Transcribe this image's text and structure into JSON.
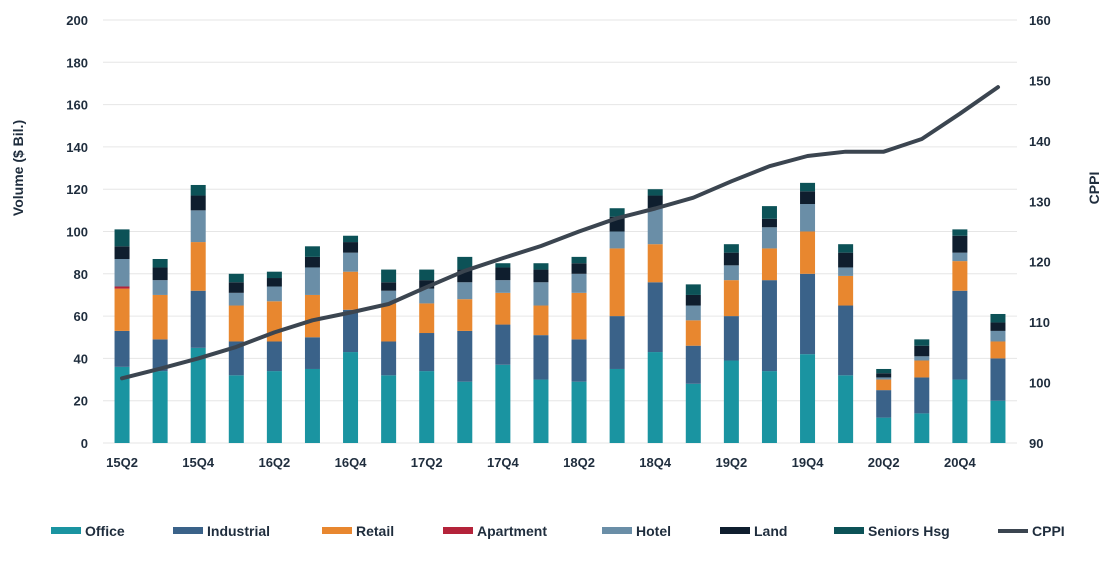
{
  "chart_data": {
    "type": "bar",
    "stacked": true,
    "categories": [
      "15Q2",
      "15Q3",
      "15Q4",
      "16Q1",
      "16Q2",
      "16Q3",
      "16Q4",
      "17Q1",
      "17Q2",
      "17Q3",
      "17Q4",
      "18Q1",
      "18Q2",
      "18Q3",
      "18Q4",
      "19Q1",
      "19Q2",
      "19Q3",
      "19Q4",
      "20Q1",
      "20Q2",
      "20Q3",
      "20Q4",
      "21Q1"
    ],
    "x_tick_labels": [
      "15Q2",
      "",
      "15Q4",
      "",
      "16Q2",
      "",
      "16Q4",
      "",
      "17Q2",
      "",
      "17Q4",
      "",
      "18Q2",
      "",
      "18Q4",
      "",
      "19Q2",
      "",
      "19Q4",
      "",
      "20Q2",
      "",
      "20Q4",
      ""
    ],
    "ylabel": "Volume ($ Bil.)",
    "y2label": "CPPI",
    "ylim": [
      0,
      200
    ],
    "y2lim": [
      90,
      160
    ],
    "yticks": [
      0,
      20,
      40,
      60,
      80,
      100,
      120,
      140,
      160,
      180,
      200
    ],
    "y2ticks": [
      90,
      100,
      110,
      120,
      130,
      140,
      150,
      160
    ],
    "grid": true,
    "legend_position": "bottom",
    "series": [
      {
        "name": "Office",
        "color": "#1a94a1",
        "values": [
          36,
          34,
          45,
          32,
          34,
          35,
          43,
          32,
          34,
          29,
          37,
          30,
          29,
          35,
          43,
          28,
          39,
          34,
          42,
          32,
          12,
          14,
          30,
          20
        ]
      },
      {
        "name": "Industrial",
        "color": "#3a6289",
        "values": [
          17,
          15,
          27,
          16,
          14,
          15,
          20,
          16,
          18,
          24,
          19,
          21,
          20,
          25,
          33,
          18,
          21,
          43,
          38,
          33,
          13,
          17,
          42,
          20
        ]
      },
      {
        "name": "Retail",
        "color": "#e8872f",
        "values": [
          20,
          21,
          23,
          17,
          19,
          20,
          18,
          18,
          14,
          15,
          15,
          14,
          22,
          32,
          18,
          12,
          17,
          15,
          20,
          14,
          5,
          8,
          14,
          8
        ]
      },
      {
        "name": "Apartment",
        "color": "#b4233a",
        "values": [
          1,
          0,
          0,
          0,
          0,
          0,
          0,
          0,
          0,
          0,
          0,
          0,
          0,
          0,
          0,
          0,
          0,
          0,
          0,
          0,
          0,
          0,
          0,
          0
        ]
      },
      {
        "name": "Hotel",
        "color": "#6a8ea7",
        "values": [
          13,
          7,
          15,
          6,
          7,
          13,
          9,
          6,
          7,
          8,
          6,
          11,
          9,
          8,
          17,
          7,
          7,
          10,
          13,
          4,
          1,
          2,
          4,
          5
        ]
      },
      {
        "name": "Land",
        "color": "#0f1e2e",
        "values": [
          6,
          6,
          7,
          5,
          4,
          5,
          5,
          4,
          4,
          6,
          6,
          6,
          5,
          7,
          6,
          5,
          6,
          4,
          6,
          7,
          2,
          5,
          8,
          4
        ]
      },
      {
        "name": "Seniors Hsg",
        "color": "#0c5257",
        "values": [
          8,
          4,
          5,
          4,
          3,
          5,
          3,
          6,
          5,
          6,
          2,
          3,
          3,
          4,
          3,
          5,
          4,
          6,
          4,
          4,
          2,
          3,
          3,
          4
        ]
      }
    ],
    "line_series": {
      "name": "CPPI",
      "color": "#3b4550",
      "axis": "right",
      "values": [
        100.7,
        102.3,
        104.0,
        105.9,
        108.3,
        110.3,
        111.6,
        113.0,
        115.8,
        118.5,
        120.6,
        122.6,
        125.0,
        127.2,
        128.8,
        130.6,
        133.3,
        135.8,
        137.5,
        138.2,
        138.2,
        140.3,
        144.5,
        148.9
      ]
    }
  }
}
